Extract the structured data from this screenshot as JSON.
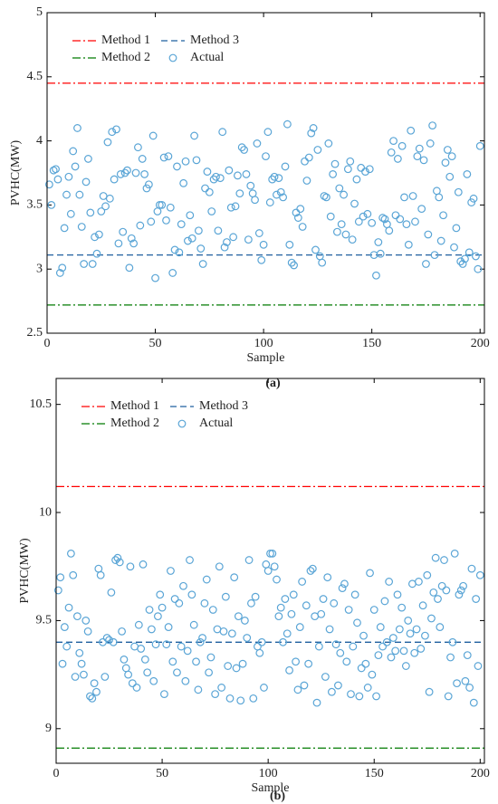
{
  "chart_data": [
    {
      "type": "scatter",
      "caption": "(a)",
      "xlabel": "Sample",
      "ylabel": "PVHC(MW)",
      "xlim": [
        0,
        202
      ],
      "xticks": [
        0,
        50,
        100,
        150,
        200
      ],
      "ylim": [
        2.5,
        5
      ],
      "yticks": [
        2.5,
        3,
        3.5,
        4,
        4.5,
        5
      ],
      "lines": [
        {
          "name": "Method 1",
          "color": "#ff0000",
          "value": 4.45,
          "style": "dashdot"
        },
        {
          "name": "Method 2",
          "color": "#007a00",
          "value": 2.72,
          "style": "dashdot"
        },
        {
          "name": "Method 3",
          "color": "#1f5f9f",
          "value": 3.11,
          "style": "dashed"
        }
      ],
      "series": [
        {
          "name": "Actual",
          "color": "#5aa5d6",
          "x": [
            1,
            2,
            3,
            4,
            5,
            6,
            7,
            8,
            9,
            10,
            11,
            12,
            13,
            14,
            15,
            16,
            17,
            18,
            19,
            20,
            21,
            22,
            23,
            24,
            25,
            26,
            27,
            28,
            29,
            30,
            31,
            32,
            33,
            34,
            35,
            36,
            37,
            38,
            39,
            40,
            41,
            42,
            43,
            44,
            45,
            46,
            47,
            48,
            49,
            50,
            51,
            52,
            53,
            54,
            55,
            56,
            57,
            58,
            59,
            60,
            61,
            62,
            63,
            64,
            65,
            66,
            67,
            68,
            69,
            70,
            71,
            72,
            73,
            74,
            75,
            76,
            77,
            78,
            79,
            80,
            81,
            82,
            83,
            84,
            85,
            86,
            87,
            88,
            89,
            90,
            91,
            92,
            93,
            94,
            95,
            96,
            97,
            98,
            99,
            100,
            101,
            102,
            103,
            104,
            105,
            106,
            107,
            108,
            109,
            110,
            111,
            112,
            113,
            114,
            115,
            116,
            117,
            118,
            119,
            120,
            121,
            122,
            123,
            124,
            125,
            126,
            127,
            128,
            129,
            130,
            131,
            132,
            133,
            134,
            135,
            136,
            137,
            138,
            139,
            140,
            141,
            142,
            143,
            144,
            145,
            146,
            147,
            148,
            149,
            150,
            151,
            152,
            153,
            154,
            155,
            156,
            157,
            158,
            159,
            160,
            161,
            162,
            163,
            164,
            165,
            166,
            167,
            168,
            169,
            170,
            171,
            172,
            173,
            174,
            175,
            176,
            177,
            178,
            179,
            180,
            181,
            182,
            183,
            184,
            185,
            186,
            187,
            188,
            189,
            190,
            191,
            192,
            193,
            194,
            195,
            196,
            197,
            198,
            199,
            200
          ],
          "values": [
            3.66,
            3.5,
            3.77,
            3.78,
            3.7,
            2.97,
            3.01,
            3.32,
            3.58,
            3.72,
            3.43,
            3.92,
            3.8,
            4.1,
            3.58,
            3.33,
            3.04,
            3.68,
            3.86,
            3.44,
            3.04,
            3.25,
            3.12,
            3.27,
            3.45,
            3.57,
            3.49,
            3.99,
            3.55,
            4.07,
            3.7,
            4.09,
            3.2,
            3.74,
            3.29,
            3.75,
            3.77,
            3.01,
            3.24,
            3.2,
            3.75,
            3.95,
            3.34,
            3.86,
            3.74,
            3.63,
            3.66,
            3.37,
            4.04,
            2.93,
            3.45,
            3.5,
            3.5,
            3.87,
            3.38,
            3.88,
            3.48,
            2.97,
            3.15,
            3.8,
            3.13,
            3.35,
            3.67,
            3.84,
            3.22,
            3.42,
            3.24,
            4.04,
            3.85,
            3.3,
            3.16,
            3.04,
            3.63,
            3.76,
            3.6,
            3.45,
            3.7,
            3.72,
            3.3,
            3.71,
            4.07,
            3.17,
            3.21,
            3.77,
            3.48,
            3.25,
            3.49,
            3.73,
            3.59,
            3.95,
            3.93,
            3.74,
            3.23,
            3.65,
            3.59,
            3.54,
            3.98,
            3.28,
            3.07,
            3.19,
            3.88,
            4.07,
            3.52,
            3.7,
            3.72,
            3.58,
            3.71,
            3.6,
            3.56,
            3.8,
            4.13,
            3.19,
            3.05,
            3.03,
            3.44,
            3.4,
            3.47,
            3.33,
            3.84,
            3.69,
            3.87,
            4.06,
            4.1,
            3.15,
            3.93,
            3.1,
            3.05,
            3.57,
            3.56,
            3.98,
            3.41,
            3.74,
            3.82,
            3.29,
            3.63,
            3.35,
            3.58,
            3.27,
            3.78,
            3.84,
            3.23,
            3.51,
            3.7,
            3.37,
            3.79,
            3.41,
            3.76,
            3.43,
            3.78,
            3.36,
            3.11,
            2.95,
            3.21,
            3.12,
            3.4,
            3.39,
            3.35,
            3.3,
            3.91,
            4.0,
            3.42,
            3.86,
            3.39,
            3.96,
            3.56,
            3.35,
            3.19,
            4.08,
            3.57,
            3.37,
            3.88,
            3.94,
            3.47,
            3.85,
            3.04,
            3.27,
            3.98,
            4.12,
            3.11,
            3.61,
            3.56,
            3.22,
            3.42,
            3.83,
            3.93,
            3.72,
            3.88,
            3.17,
            3.32,
            3.6,
            3.06,
            3.04,
            3.08,
            3.74,
            3.13,
            3.52,
            3.55,
            3.1,
            3.0,
            3.96
          ]
        }
      ]
    },
    {
      "type": "scatter",
      "caption": "(b)",
      "xlabel": "Sample",
      "ylabel": "PVHC(MW)",
      "xlim": [
        0,
        202
      ],
      "xticks": [
        0,
        50,
        100,
        150,
        200
      ],
      "ylim": [
        8.84,
        10.62
      ],
      "yticks": [
        9,
        9.5,
        10,
        10.5
      ],
      "lines": [
        {
          "name": "Method 1",
          "color": "#ff0000",
          "value": 10.12,
          "style": "dashdot"
        },
        {
          "name": "Method 2",
          "color": "#007a00",
          "value": 8.91,
          "style": "dashdot"
        },
        {
          "name": "Method 3",
          "color": "#1f5f9f",
          "value": 9.4,
          "style": "dashed"
        }
      ],
      "series": [
        {
          "name": "Actual",
          "color": "#5aa5d6",
          "x": [
            1,
            2,
            3,
            4,
            5,
            6,
            7,
            8,
            9,
            10,
            11,
            12,
            13,
            14,
            15,
            16,
            17,
            18,
            19,
            20,
            21,
            22,
            23,
            24,
            25,
            26,
            27,
            28,
            29,
            30,
            31,
            32,
            33,
            34,
            35,
            36,
            37,
            38,
            39,
            40,
            41,
            42,
            43,
            44,
            45,
            46,
            47,
            48,
            49,
            50,
            51,
            52,
            53,
            54,
            55,
            56,
            57,
            58,
            59,
            60,
            61,
            62,
            63,
            64,
            65,
            66,
            67,
            68,
            69,
            70,
            71,
            72,
            73,
            74,
            75,
            76,
            77,
            78,
            79,
            80,
            81,
            82,
            83,
            84,
            85,
            86,
            87,
            88,
            89,
            90,
            91,
            92,
            93,
            94,
            95,
            96,
            97,
            98,
            99,
            100,
            101,
            102,
            103,
            104,
            105,
            106,
            107,
            108,
            109,
            110,
            111,
            112,
            113,
            114,
            115,
            116,
            117,
            118,
            119,
            120,
            121,
            122,
            123,
            124,
            125,
            126,
            127,
            128,
            129,
            130,
            131,
            132,
            133,
            134,
            135,
            136,
            137,
            138,
            139,
            140,
            141,
            142,
            143,
            144,
            145,
            146,
            147,
            148,
            149,
            150,
            151,
            152,
            153,
            154,
            155,
            156,
            157,
            158,
            159,
            160,
            161,
            162,
            163,
            164,
            165,
            166,
            167,
            168,
            169,
            170,
            171,
            172,
            173,
            174,
            175,
            176,
            177,
            178,
            179,
            180,
            181,
            182,
            183,
            184,
            185,
            186,
            187,
            188,
            189,
            190,
            191,
            192,
            193,
            194,
            195,
            196,
            197,
            198,
            199,
            200
          ],
          "values": [
            9.64,
            9.7,
            9.3,
            9.47,
            9.38,
            9.56,
            9.81,
            9.71,
            9.24,
            9.52,
            9.35,
            9.3,
            9.25,
            9.5,
            9.45,
            9.15,
            9.14,
            9.21,
            9.17,
            9.74,
            9.71,
            9.4,
            9.24,
            9.42,
            9.41,
            9.63,
            9.4,
            9.78,
            9.79,
            9.77,
            9.45,
            9.32,
            9.28,
            9.25,
            9.75,
            9.21,
            9.38,
            9.19,
            9.48,
            9.37,
            9.76,
            9.32,
            9.26,
            9.55,
            9.46,
            9.22,
            9.39,
            9.52,
            9.62,
            9.56,
            9.16,
            9.39,
            9.47,
            9.73,
            9.31,
            9.6,
            9.26,
            9.58,
            9.38,
            9.66,
            9.22,
            9.36,
            9.78,
            9.62,
            9.48,
            9.31,
            9.18,
            9.4,
            9.42,
            9.58,
            9.69,
            9.26,
            9.33,
            9.55,
            9.16,
            9.46,
            9.75,
            9.19,
            9.45,
            9.61,
            9.29,
            9.14,
            9.44,
            9.7,
            9.28,
            9.52,
            9.13,
            9.3,
            9.5,
            9.42,
            9.78,
            9.58,
            9.14,
            9.61,
            9.38,
            9.35,
            9.4,
            9.19,
            9.76,
            9.73,
            9.81,
            9.81,
            9.75,
            9.69,
            9.52,
            9.56,
            9.4,
            9.6,
            9.44,
            9.27,
            9.53,
            9.62,
            9.31,
            9.18,
            9.47,
            9.68,
            9.2,
            9.57,
            9.3,
            9.73,
            9.74,
            9.52,
            9.12,
            9.38,
            9.53,
            9.6,
            9.24,
            9.7,
            9.46,
            9.17,
            9.58,
            9.39,
            9.2,
            9.35,
            9.65,
            9.67,
            9.31,
            9.55,
            9.16,
            9.38,
            9.62,
            9.49,
            9.15,
            9.28,
            9.43,
            9.3,
            9.19,
            9.72,
            9.25,
            9.55,
            9.15,
            9.34,
            9.47,
            9.38,
            9.59,
            9.4,
            9.68,
            9.33,
            9.42,
            9.36,
            9.62,
            9.46,
            9.56,
            9.36,
            9.29,
            9.5,
            9.44,
            9.67,
            9.35,
            9.46,
            9.68,
            9.37,
            9.57,
            9.43,
            9.71,
            9.17,
            9.51,
            9.63,
            9.79,
            9.6,
            9.47,
            9.66,
            9.78,
            9.64,
            9.15,
            9.33,
            9.4,
            9.81,
            9.21,
            9.62,
            9.64,
            9.66,
            9.22,
            9.34,
            9.19,
            9.74,
            9.12,
            9.6,
            9.29,
            9.71
          ]
        }
      ]
    }
  ]
}
